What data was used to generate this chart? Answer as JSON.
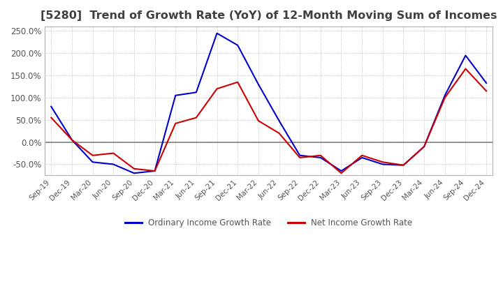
{
  "title": "[5280]  Trend of Growth Rate (YoY) of 12-Month Moving Sum of Incomes",
  "title_color": "#404040",
  "title_fontsize": 11.5,
  "background_color": "#ffffff",
  "plot_bg_color": "#ffffff",
  "grid_color": "#b0b0b0",
  "x_labels": [
    "Sep-19",
    "Dec-19",
    "Mar-20",
    "Jun-20",
    "Sep-20",
    "Dec-20",
    "Mar-21",
    "Jun-21",
    "Sep-21",
    "Dec-21",
    "Mar-22",
    "Jun-22",
    "Sep-22",
    "Dec-22",
    "Mar-23",
    "Jun-23",
    "Sep-23",
    "Dec-23",
    "Mar-24",
    "Jun-24",
    "Sep-24",
    "Dec-24"
  ],
  "ordinary_income": [
    80,
    5,
    -45,
    -50,
    -70,
    -65,
    105,
    112,
    245,
    218,
    130,
    48,
    -30,
    -35,
    -65,
    -35,
    -50,
    -52,
    -10,
    105,
    195,
    133
  ],
  "net_income": [
    55,
    5,
    -30,
    -25,
    -60,
    -65,
    42,
    55,
    120,
    135,
    48,
    20,
    -35,
    -30,
    -70,
    -30,
    -45,
    -52,
    -10,
    100,
    165,
    115
  ],
  "ordinary_color": "#0000cc",
  "net_color": "#cc0000",
  "ylim": [
    -75,
    260
  ],
  "yticks": [
    -50,
    0,
    50,
    100,
    150,
    200,
    250
  ],
  "legend_labels": [
    "Ordinary Income Growth Rate",
    "Net Income Growth Rate"
  ],
  "line_width": 1.5
}
